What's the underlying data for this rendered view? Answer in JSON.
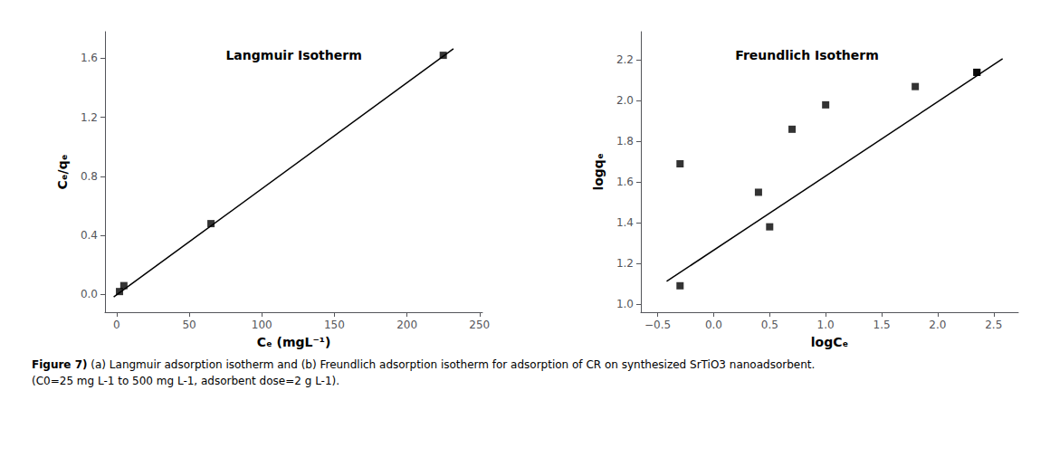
{
  "chart_data": [
    {
      "type": "scatter",
      "title": "Langmuir Isotherm",
      "xlabel": "Cₑ (mgL⁻¹)",
      "ylabel": "Cₑ/qₑ",
      "series": [
        {
          "type": "line",
          "color": "#000000",
          "line_style": "solid",
          "x": [
            -2.0,
            232.0
          ],
          "values": [
            -0.01636,
            1.66376
          ]
        },
        {
          "type": "scatter",
          "color": "#000000",
          "marker": "square",
          "x": [
            2.0,
            5.0,
            65.0,
            225.0
          ],
          "values": [
            0.02,
            0.06,
            0.48,
            1.62
          ]
        }
      ],
      "xlim": [
        -8,
        252
      ],
      "ylim": [
        -0.12,
        1.78
      ],
      "xticks": [
        0,
        50,
        100,
        150,
        200,
        250
      ],
      "yticks": [
        {
          "value": 0.0,
          "label": "0.0"
        },
        0.4,
        0.8,
        1.2,
        1.6
      ],
      "grid": false
    },
    {
      "type": "scatter",
      "title": "Freundlich Isotherm",
      "xlabel": "logCₑ",
      "ylabel": "logqₑ",
      "series": [
        {
          "type": "line",
          "color": "#000000",
          "line_style": "solid",
          "x": [
            -0.42,
            2.58
          ],
          "values": [
            1.1117,
            2.2067
          ]
        },
        {
          "type": "scatter",
          "color": "#000000",
          "marker": "square",
          "x": [
            -0.3,
            -0.3,
            0.4,
            0.5,
            0.7,
            1.0,
            1.8,
            2.35,
            2.35
          ],
          "values": [
            1.69,
            1.09,
            1.55,
            1.38,
            1.86,
            1.98,
            2.07,
            2.14,
            2.14
          ]
        }
      ],
      "xlim": [
        -0.65,
        2.72
      ],
      "ylim": [
        0.96,
        2.34
      ],
      "xticks": [
        {
          "value": -0.5,
          "label": "−0.5"
        },
        {
          "value": 0.0,
          "label": "0.0"
        },
        0.5,
        {
          "value": 1.0,
          "label": "1.0"
        },
        1.5,
        {
          "value": 2.0,
          "label": "2.0"
        },
        2.5
      ],
      "yticks": [
        {
          "value": 1.0,
          "label": "1.0"
        },
        1.2,
        1.4,
        1.6,
        1.8,
        {
          "value": 2.0,
          "label": "2.0"
        },
        2.2
      ],
      "grid": false
    }
  ],
  "caption_bold": "Figure 7)",
  "caption": " (a) Langmuir adsorption isotherm and (b) Freundlich adsorption isotherm for adsorption of CR on synthesized SrTiO3 nanoadsorbent.\n(C0=25 mg L-1 to 500 mg L-1, adsorbent dose=2 g L-1)."
}
